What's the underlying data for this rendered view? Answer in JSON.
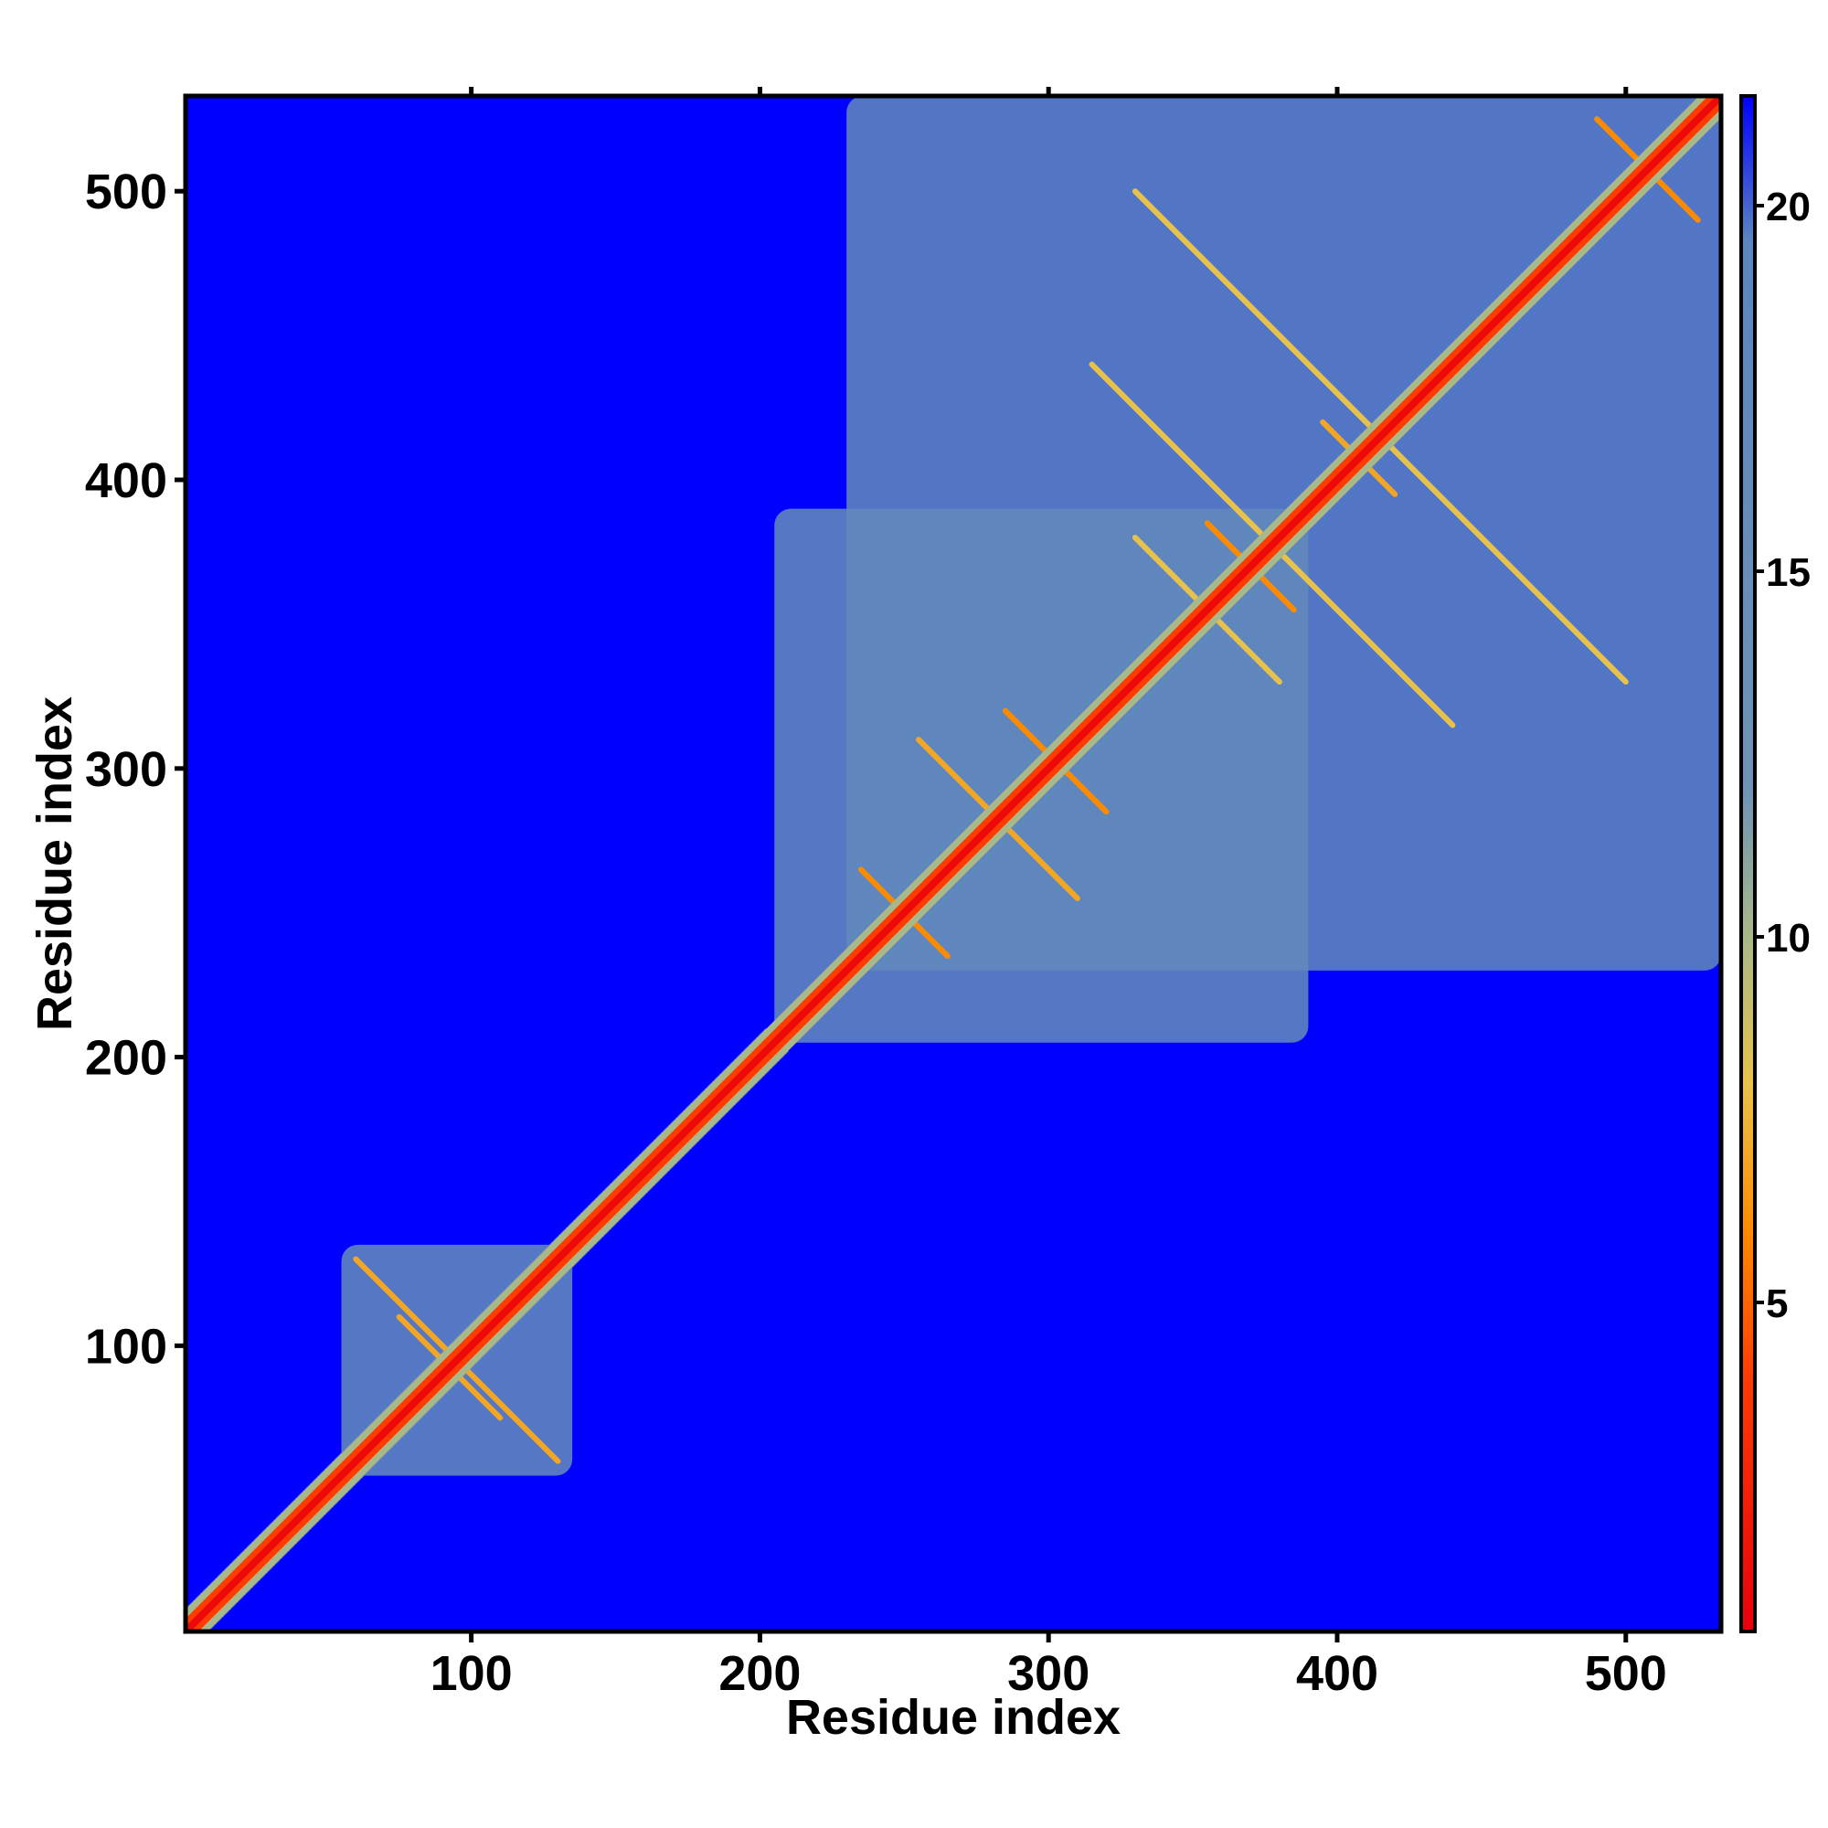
{
  "chart_data": {
    "type": "heatmap",
    "title": "",
    "xlabel": "Residue index",
    "ylabel": "Residue index",
    "xlim": [
      1,
      533
    ],
    "ylim": [
      1,
      533
    ],
    "x_ticks": [
      100,
      200,
      300,
      400,
      500
    ],
    "y_ticks": [
      100,
      200,
      300,
      400,
      500
    ],
    "x_tick_labels": [
      "100",
      "200",
      "300",
      "400",
      "500"
    ],
    "y_tick_labels": [
      "100",
      "200",
      "300",
      "400",
      "500"
    ],
    "colorbar": {
      "range": [
        0.5,
        21.5
      ],
      "ticks": [
        5,
        10,
        15,
        20
      ],
      "tick_labels": [
        "5",
        "10",
        "15",
        "20"
      ],
      "colors": [
        {
          "value": 0.5,
          "color": "#e8000b"
        },
        {
          "value": 4,
          "color": "#ff3c00"
        },
        {
          "value": 6,
          "color": "#ff8c00"
        },
        {
          "value": 8,
          "color": "#e8c24a"
        },
        {
          "value": 10,
          "color": "#a9b889"
        },
        {
          "value": 12,
          "color": "#6f93b5"
        },
        {
          "value": 19.5,
          "color": "#5b86bf"
        },
        {
          "value": 21.5,
          "color": "#0000ff"
        }
      ]
    },
    "background_value": 21,
    "background_color": "#0000ff",
    "diagonal": {
      "residues": [
        1,
        533
      ],
      "core_value": 1,
      "mid_value": 4,
      "halo_value": 10
    },
    "domains": [
      {
        "name": "",
        "from": 1,
        "to": 210,
        "value": 15,
        "note": "narrow band along diagonal"
      },
      {
        "name": "",
        "from": 55,
        "to": 135,
        "value": 16
      },
      {
        "name": "",
        "from": 205,
        "to": 390,
        "value": 16
      },
      {
        "name": "",
        "from": 230,
        "to": 533,
        "value": 17
      }
    ],
    "offdiagonal_contacts": [
      {
        "x1": 60,
        "y1": 130,
        "x2": 130,
        "y2": 60,
        "value": 7
      },
      {
        "x1": 75,
        "y1": 110,
        "x2": 110,
        "y2": 75,
        "value": 7
      },
      {
        "x1": 235,
        "y1": 265,
        "x2": 265,
        "y2": 235,
        "value": 6
      },
      {
        "x1": 255,
        "y1": 310,
        "x2": 310,
        "y2": 255,
        "value": 7
      },
      {
        "x1": 285,
        "y1": 320,
        "x2": 320,
        "y2": 285,
        "value": 6
      },
      {
        "x1": 355,
        "y1": 385,
        "x2": 385,
        "y2": 355,
        "value": 6
      },
      {
        "x1": 395,
        "y1": 420,
        "x2": 420,
        "y2": 395,
        "value": 7
      },
      {
        "x1": 490,
        "y1": 525,
        "x2": 525,
        "y2": 490,
        "value": 6
      },
      {
        "x1": 330,
        "y1": 500,
        "x2": 500,
        "y2": 330,
        "value": 8
      },
      {
        "x1": 315,
        "y1": 440,
        "x2": 440,
        "y2": 315,
        "value": 8
      },
      {
        "x1": 380,
        "y1": 330,
        "x2": 330,
        "y2": 380,
        "value": 8
      }
    ],
    "grid": false,
    "legend": "colorbar-right"
  }
}
